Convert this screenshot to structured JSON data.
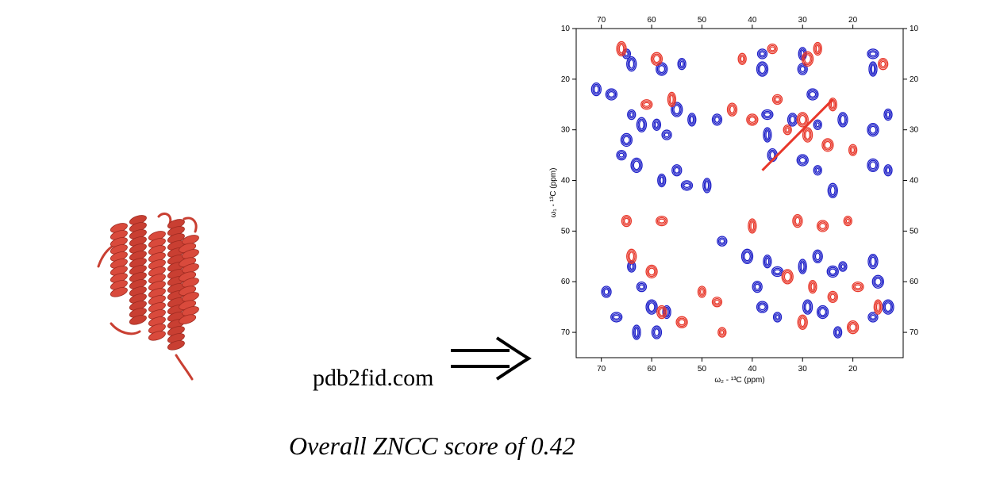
{
  "site_label": "pdb2fid.com",
  "caption": "Overall ZNCC score of 0.42",
  "colors": {
    "protein": "#d94a3c",
    "contour_positive": "#1d1fc8",
    "contour_negative": "#e8372a",
    "arrow": "#000000"
  },
  "icons": {
    "protein": "protein-ribbon-icon",
    "arrow": "double-arrow-icon"
  },
  "chart_data": {
    "type": "heatmap",
    "title": "",
    "xlabel": "ω₂ - ¹³C (ppm)",
    "ylabel": "ω₁ - ¹³C (ppm)",
    "xlim": [
      75,
      10
    ],
    "ylim": [
      10,
      75
    ],
    "x_ticks": [
      70,
      60,
      50,
      40,
      30,
      20
    ],
    "y_ticks": [
      10,
      20,
      30,
      40,
      50,
      60,
      70
    ],
    "series": [
      {
        "values": [
          [
            65,
            15
          ],
          [
            64,
            17
          ],
          [
            58,
            18
          ],
          [
            54,
            17
          ],
          [
            38,
            15
          ],
          [
            38,
            18
          ],
          [
            30,
            15
          ],
          [
            30,
            18
          ],
          [
            16,
            15
          ],
          [
            16,
            18
          ],
          [
            71,
            22
          ],
          [
            68,
            23
          ],
          [
            64,
            27
          ],
          [
            62,
            29
          ],
          [
            65,
            32
          ],
          [
            59,
            29
          ],
          [
            57,
            31
          ],
          [
            55,
            26
          ],
          [
            52,
            28
          ],
          [
            47,
            28
          ],
          [
            37,
            27
          ],
          [
            37,
            31
          ],
          [
            32,
            28
          ],
          [
            28,
            23
          ],
          [
            27,
            29
          ],
          [
            22,
            28
          ],
          [
            16,
            30
          ],
          [
            13,
            27
          ],
          [
            66,
            35
          ],
          [
            63,
            37
          ],
          [
            58,
            40
          ],
          [
            55,
            38
          ],
          [
            53,
            41
          ],
          [
            49,
            41
          ],
          [
            36,
            35
          ],
          [
            30,
            36
          ],
          [
            27,
            38
          ],
          [
            24,
            42
          ],
          [
            16,
            37
          ],
          [
            13,
            38
          ],
          [
            46,
            52
          ],
          [
            41,
            55
          ],
          [
            37,
            56
          ],
          [
            39,
            61
          ],
          [
            35,
            58
          ],
          [
            30,
            57
          ],
          [
            27,
            55
          ],
          [
            24,
            58
          ],
          [
            22,
            57
          ],
          [
            16,
            56
          ],
          [
            15,
            60
          ],
          [
            64,
            57
          ],
          [
            62,
            61
          ],
          [
            60,
            65
          ],
          [
            57,
            66
          ],
          [
            69,
            62
          ],
          [
            67,
            67
          ],
          [
            63,
            70
          ],
          [
            59,
            70
          ],
          [
            38,
            65
          ],
          [
            35,
            67
          ],
          [
            29,
            65
          ],
          [
            26,
            66
          ],
          [
            23,
            70
          ],
          [
            16,
            67
          ],
          [
            13,
            65
          ]
        ]
      },
      {
        "values": [
          [
            66,
            14
          ],
          [
            59,
            16
          ],
          [
            42,
            16
          ],
          [
            36,
            14
          ],
          [
            29,
            16
          ],
          [
            27,
            14
          ],
          [
            14,
            17
          ],
          [
            61,
            25
          ],
          [
            56,
            24
          ],
          [
            44,
            26
          ],
          [
            40,
            28
          ],
          [
            33,
            30
          ],
          [
            29,
            31
          ],
          [
            25,
            33
          ],
          [
            20,
            34
          ],
          [
            35,
            24
          ],
          [
            30,
            28
          ],
          [
            24,
            25
          ],
          [
            65,
            48
          ],
          [
            58,
            48
          ],
          [
            40,
            49
          ],
          [
            31,
            48
          ],
          [
            26,
            49
          ],
          [
            21,
            48
          ],
          [
            64,
            55
          ],
          [
            60,
            58
          ],
          [
            50,
            62
          ],
          [
            47,
            64
          ],
          [
            33,
            59
          ],
          [
            28,
            61
          ],
          [
            24,
            63
          ],
          [
            19,
            61
          ],
          [
            15,
            65
          ],
          [
            58,
            66
          ],
          [
            54,
            68
          ],
          [
            46,
            70
          ],
          [
            30,
            68
          ],
          [
            20,
            69
          ]
        ]
      }
    ]
  }
}
